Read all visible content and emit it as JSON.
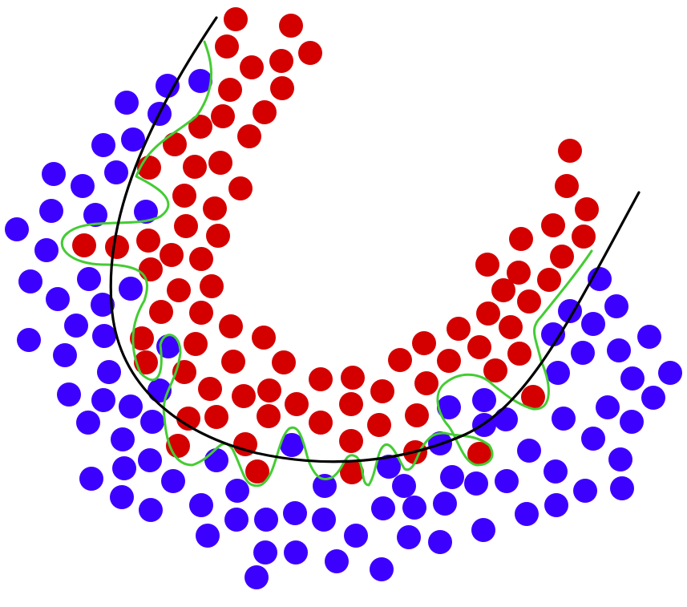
{
  "colors": {
    "background": "#ffffff",
    "class_a": "#d40000",
    "class_b": "#3c00ff",
    "smooth_boundary": "#000000",
    "overfit_boundary": "#44cc33"
  },
  "legend": null,
  "classes": [
    {
      "id": "red",
      "color_key": "class_a",
      "count": 114
    },
    {
      "id": "blue",
      "color_key": "class_b",
      "count": 125
    }
  ],
  "boundaries": [
    {
      "id": "smooth",
      "color_key": "smooth_boundary",
      "style": "solid"
    },
    {
      "id": "overfit",
      "color_key": "overfit_boundary",
      "style": "solid"
    }
  ]
}
